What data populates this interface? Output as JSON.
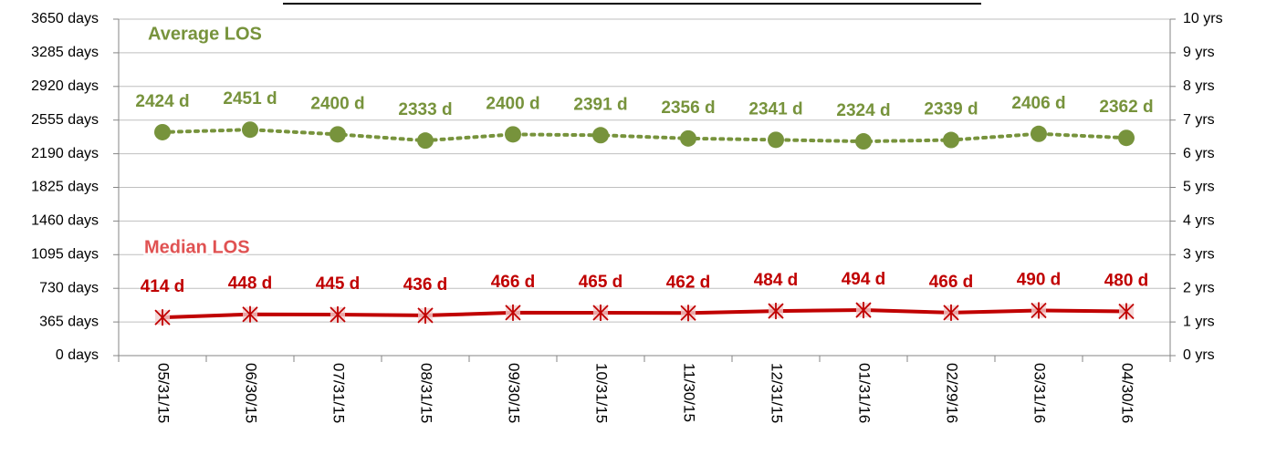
{
  "chart_data": {
    "type": "line",
    "categories": [
      "05/31/15",
      "06/30/15",
      "07/31/15",
      "08/31/15",
      "09/30/15",
      "10/31/15",
      "11/30/15",
      "12/31/15",
      "01/31/16",
      "02/29/16",
      "03/31/16",
      "04/30/16"
    ],
    "series": [
      {
        "name": "Average LOS",
        "color": "#77933c",
        "line_style": "dotted",
        "marker": "circle",
        "values": [
          2424,
          2451,
          2400,
          2333,
          2400,
          2391,
          2356,
          2341,
          2324,
          2339,
          2406,
          2362
        ],
        "value_labels": [
          "2424 d",
          "2451 d",
          "2400 d",
          "2333 d",
          "2400 d",
          "2391 d",
          "2356 d",
          "2341 d",
          "2324 d",
          "2339 d",
          "2406 d",
          "2362 d"
        ]
      },
      {
        "name": "Median LOS",
        "color": "#c00000",
        "line_style": "solid",
        "marker": "star",
        "values": [
          414,
          448,
          445,
          436,
          466,
          465,
          462,
          484,
          494,
          466,
          490,
          480
        ],
        "value_labels": [
          "414 d",
          "448 d",
          "445 d",
          "436 d",
          "466 d",
          "465 d",
          "462 d",
          "484 d",
          "494 d",
          "466 d",
          "490 d",
          "480 d"
        ]
      }
    ],
    "ylim": [
      0,
      3650
    ],
    "yticks": [
      {
        "value": 0,
        "label": "0 days"
      },
      {
        "value": 365,
        "label": "365 days"
      },
      {
        "value": 730,
        "label": "730 days"
      },
      {
        "value": 1095,
        "label": "1095 days"
      },
      {
        "value": 1460,
        "label": "1460 days"
      },
      {
        "value": 1825,
        "label": "1825 days"
      },
      {
        "value": 2190,
        "label": "2190 days"
      },
      {
        "value": 2555,
        "label": "2555 days"
      },
      {
        "value": 2920,
        "label": "2920 days"
      },
      {
        "value": 3285,
        "label": "3285 days"
      },
      {
        "value": 3650,
        "label": "3650 days"
      }
    ],
    "y2lim": [
      0,
      10
    ],
    "y2ticks": [
      {
        "value": 0,
        "label": "0 yrs"
      },
      {
        "value": 1,
        "label": "1 yrs"
      },
      {
        "value": 2,
        "label": "2 yrs"
      },
      {
        "value": 3,
        "label": "3 yrs"
      },
      {
        "value": 4,
        "label": "4 yrs"
      },
      {
        "value": 5,
        "label": "5 yrs"
      },
      {
        "value": 6,
        "label": "6 yrs"
      },
      {
        "value": 7,
        "label": "7 yrs"
      },
      {
        "value": 8,
        "label": "8 yrs"
      },
      {
        "value": 9,
        "label": "9 yrs"
      },
      {
        "value": 10,
        "label": "10 yrs"
      }
    ],
    "grid": true
  }
}
